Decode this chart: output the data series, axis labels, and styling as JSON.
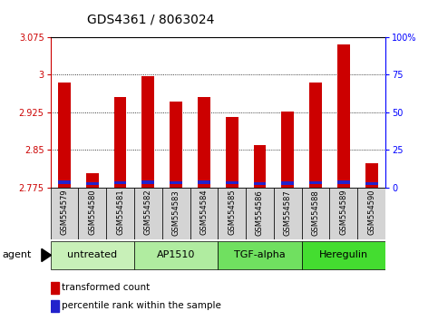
{
  "title": "GDS4361 / 8063024",
  "samples": [
    "GSM554579",
    "GSM554580",
    "GSM554581",
    "GSM554582",
    "GSM554583",
    "GSM554584",
    "GSM554585",
    "GSM554586",
    "GSM554587",
    "GSM554588",
    "GSM554589",
    "GSM554590"
  ],
  "red_values": [
    2.985,
    2.804,
    2.955,
    2.997,
    2.947,
    2.955,
    2.915,
    2.86,
    2.927,
    2.984,
    3.06,
    2.824
  ],
  "blue_bottom": [
    2.783,
    2.78,
    2.782,
    2.783,
    2.782,
    2.783,
    2.782,
    2.78,
    2.781,
    2.782,
    2.783,
    2.78
  ],
  "blue_heights": [
    0.006,
    0.006,
    0.006,
    0.006,
    0.006,
    0.006,
    0.006,
    0.006,
    0.006,
    0.006,
    0.006,
    0.006
  ],
  "ymin": 2.775,
  "ymax": 3.075,
  "yticks_left": [
    2.775,
    2.85,
    2.925,
    3.0,
    3.075
  ],
  "ytick_labels_left": [
    "2.775",
    "2.85",
    "2.925",
    "3",
    "3.075"
  ],
  "yticks_right": [
    0,
    25,
    50,
    75,
    100
  ],
  "ytick_labels_right": [
    "0",
    "25",
    "50",
    "75",
    "100%"
  ],
  "gridlines": [
    3.0,
    2.925,
    2.85,
    2.775
  ],
  "groups": [
    {
      "label": "untreated",
      "start": 0,
      "end": 3,
      "color": "#c8f0b8"
    },
    {
      "label": "AP1510",
      "start": 3,
      "end": 6,
      "color": "#b0eca0"
    },
    {
      "label": "TGF-alpha",
      "start": 6,
      "end": 9,
      "color": "#70e060"
    },
    {
      "label": "Heregulin",
      "start": 9,
      "end": 12,
      "color": "#44dd30"
    }
  ],
  "agent_label": "agent",
  "bar_color_red": "#cc0000",
  "bar_color_blue": "#2222cc",
  "title_fontsize": 10,
  "tick_fontsize": 7,
  "sample_fontsize": 6,
  "group_fontsize": 8,
  "legend_fontsize": 7.5
}
